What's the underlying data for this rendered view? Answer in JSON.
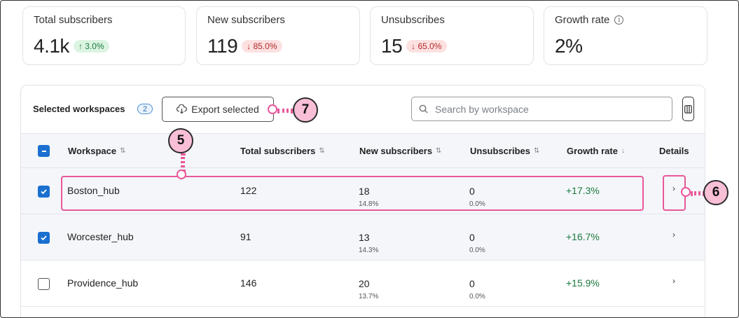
{
  "stats": [
    {
      "label": "Total subscribers",
      "value": "4.1k",
      "badge": "↑ 3.0%",
      "trend": "up"
    },
    {
      "label": "New subscribers",
      "value": "119",
      "badge": "↓ 85.0%",
      "trend": "down"
    },
    {
      "label": "Unsubscribes",
      "value": "15",
      "badge": "↓ 65.0%",
      "trend": "down"
    },
    {
      "label": "Growth rate",
      "value": "2%",
      "info_icon": "info-icon"
    }
  ],
  "toolbar": {
    "selected_label": "Selected workspaces",
    "selected_count": "2",
    "export_label": "Export selected",
    "export_icon": "cloud-download-icon",
    "search_placeholder": "Search by workspace",
    "search_icon": "search-icon",
    "columns_icon": "columns-icon"
  },
  "table": {
    "headers": {
      "workspace": "Workspace",
      "total": "Total subscribers",
      "new": "New subscribers",
      "unsub": "Unsubscribes",
      "growth": "Growth rate",
      "details": "Details"
    },
    "rows": [
      {
        "workspace": "Boston_hub",
        "total": "122",
        "new": "18",
        "new_pct": "14.8%",
        "unsub": "0",
        "unsub_pct": "0.0%",
        "growth": "+17.3%",
        "checked": true
      },
      {
        "workspace": "Worcester_hub",
        "total": "91",
        "new": "13",
        "new_pct": "14.3%",
        "unsub": "0",
        "unsub_pct": "0.0%",
        "growth": "+16.7%",
        "checked": true
      },
      {
        "workspace": "Providence_hub",
        "total": "146",
        "new": "20",
        "new_pct": "13.7%",
        "unsub": "0",
        "unsub_pct": "0.0%",
        "growth": "+15.9%",
        "checked": false
      }
    ]
  },
  "callouts": {
    "row": "5",
    "details": "6",
    "export": "7"
  },
  "colors": {
    "accent": "#1a6fd0",
    "highlight": "#e8589a",
    "marker_fill": "#f8bfd6",
    "positive": "#1c7a3c",
    "negative": "#b42828"
  }
}
